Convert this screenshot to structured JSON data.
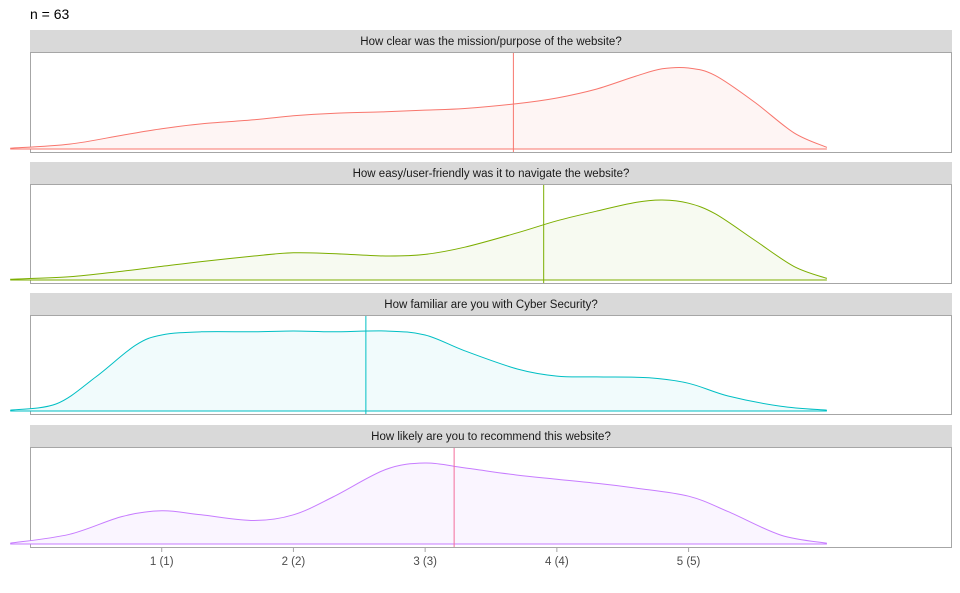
{
  "sample_size": {
    "label": "n = ",
    "value": "63"
  },
  "chart_data": {
    "type": "area",
    "subtype": "density-facets",
    "xlim": [
      0.0,
      7.0
    ],
    "x_ticks": [
      {
        "value": 1,
        "label": "1 (1)"
      },
      {
        "value": 2,
        "label": "2 (2)"
      },
      {
        "value": 3,
        "label": "3 (3)"
      },
      {
        "value": 4,
        "label": "4 (4)"
      },
      {
        "value": 5,
        "label": "5 (5)"
      }
    ],
    "panels": [
      {
        "title": "How clear was the mission/purpose of the website?",
        "color": "#F8766D",
        "fill": "#FEF5F4",
        "mean": 3.67,
        "x": [
          -0.15,
          0.3,
          0.7,
          1.0,
          1.3,
          1.7,
          2.0,
          2.3,
          2.7,
          3.0,
          3.3,
          3.7,
          4.0,
          4.3,
          4.6,
          4.8,
          5.0,
          5.2,
          5.5,
          5.8,
          6.05
        ],
        "density": [
          0.01,
          0.06,
          0.17,
          0.25,
          0.31,
          0.36,
          0.41,
          0.44,
          0.46,
          0.48,
          0.5,
          0.56,
          0.63,
          0.74,
          0.9,
          0.99,
          1.0,
          0.91,
          0.58,
          0.2,
          0.02
        ]
      },
      {
        "title": "How easy/user-friendly was it to navigate the website?",
        "color": "#7CAE00",
        "fill": "#F7FAF1",
        "mean": 3.9,
        "x": [
          -0.15,
          0.3,
          0.7,
          1.0,
          1.3,
          1.7,
          2.0,
          2.3,
          2.7,
          3.0,
          3.3,
          3.7,
          4.0,
          4.3,
          4.6,
          4.8,
          5.0,
          5.2,
          5.5,
          5.8,
          6.05
        ],
        "density": [
          0.01,
          0.04,
          0.11,
          0.17,
          0.23,
          0.3,
          0.34,
          0.33,
          0.3,
          0.32,
          0.41,
          0.59,
          0.74,
          0.86,
          0.97,
          1.0,
          0.96,
          0.83,
          0.5,
          0.17,
          0.02
        ]
      },
      {
        "title": "How familiar are you with Cyber Security?",
        "color": "#00BFC4",
        "fill": "#F1FBFC",
        "mean": 2.55,
        "x": [
          -0.15,
          0.2,
          0.5,
          0.8,
          1.0,
          1.3,
          1.7,
          2.0,
          2.3,
          2.7,
          3.0,
          3.3,
          3.7,
          4.0,
          4.3,
          4.7,
          5.0,
          5.3,
          5.7,
          6.05
        ],
        "density": [
          0.01,
          0.09,
          0.43,
          0.83,
          0.96,
          1.0,
          1.0,
          1.01,
          1.0,
          1.01,
          0.96,
          0.76,
          0.53,
          0.44,
          0.43,
          0.42,
          0.35,
          0.19,
          0.06,
          0.01
        ]
      },
      {
        "title": "How likely are you to recommend this website?",
        "color": "#C77CFF",
        "fill": "#FAF5FF",
        "mean": 3.22,
        "mean_color": "#F46D9B",
        "x": [
          -0.15,
          0.3,
          0.7,
          1.0,
          1.3,
          1.7,
          2.0,
          2.3,
          2.7,
          3.0,
          3.3,
          3.7,
          4.0,
          4.3,
          4.6,
          5.0,
          5.3,
          5.7,
          6.05
        ],
        "density": [
          0.01,
          0.12,
          0.34,
          0.41,
          0.36,
          0.29,
          0.36,
          0.58,
          0.92,
          1.0,
          0.94,
          0.85,
          0.8,
          0.75,
          0.69,
          0.59,
          0.4,
          0.11,
          0.01
        ]
      }
    ],
    "legend": "none",
    "grid": false
  }
}
